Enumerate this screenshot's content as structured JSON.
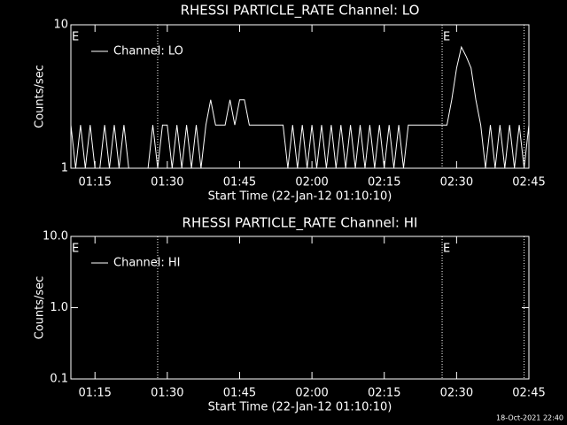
{
  "chart_data": [
    {
      "type": "line",
      "title": "RHESSI PARTICLE_RATE Channel: LO",
      "ylabel": "Counts/sec",
      "xlabel": "Start Time (22-Jan-12 01:10:10)",
      "log_y": true,
      "xlim": [
        "01:10",
        "02:45"
      ],
      "ylim": [
        1,
        10
      ],
      "yticks": [
        1,
        10
      ],
      "xticks": [
        "01:15",
        "01:30",
        "01:45",
        "02:00",
        "02:15",
        "02:30",
        "02:45"
      ],
      "vlines": [
        "01:28",
        "02:27",
        "02:44"
      ],
      "events": [
        {
          "x": "01:10",
          "label": "E"
        },
        {
          "x": "02:27",
          "label": "E"
        }
      ],
      "x": [
        "01:10",
        "01:11",
        "01:12",
        "01:13",
        "01:14",
        "01:15",
        "01:16",
        "01:17",
        "01:18",
        "01:19",
        "01:20",
        "01:21",
        "01:22",
        "01:23",
        "01:24",
        "01:25",
        "01:26",
        "01:27",
        "01:28",
        "01:29",
        "01:30",
        "01:31",
        "01:32",
        "01:33",
        "01:34",
        "01:35",
        "01:36",
        "01:37",
        "01:38",
        "01:39",
        "01:40",
        "01:41",
        "01:42",
        "01:43",
        "01:44",
        "01:45",
        "01:46",
        "01:47",
        "01:48",
        "01:49",
        "01:50",
        "01:51",
        "01:52",
        "01:53",
        "01:54",
        "01:55",
        "01:56",
        "01:57",
        "01:58",
        "01:59",
        "02:00",
        "02:01",
        "02:02",
        "02:03",
        "02:04",
        "02:05",
        "02:06",
        "02:07",
        "02:08",
        "02:09",
        "02:10",
        "02:11",
        "02:12",
        "02:13",
        "02:14",
        "02:15",
        "02:16",
        "02:17",
        "02:18",
        "02:19",
        "02:20",
        "02:21",
        "02:22",
        "02:23",
        "02:24",
        "02:25",
        "02:26",
        "02:27",
        "02:28",
        "02:29",
        "02:30",
        "02:31",
        "02:32",
        "02:33",
        "02:34",
        "02:35",
        "02:36",
        "02:37",
        "02:38",
        "02:39",
        "02:40",
        "02:41",
        "02:42",
        "02:43",
        "02:44",
        "02:45"
      ],
      "series": [
        {
          "name": "Channel: LO",
          "color": "#ffffff",
          "values": [
            2,
            1,
            2,
            1,
            2,
            1,
            1,
            2,
            1,
            2,
            1,
            2,
            1,
            1,
            1,
            1,
            1,
            2,
            1,
            2,
            2,
            1,
            2,
            1,
            2,
            1,
            2,
            1,
            2,
            3,
            2,
            2,
            2,
            3,
            2,
            3,
            3,
            2,
            2,
            2,
            2,
            2,
            2,
            2,
            2,
            1,
            2,
            1,
            2,
            1,
            2,
            1,
            2,
            1,
            2,
            1,
            2,
            1,
            2,
            1,
            2,
            1,
            2,
            1,
            2,
            1,
            2,
            1,
            2,
            1,
            2,
            2,
            2,
            2,
            2,
            2,
            2,
            2,
            2,
            3,
            5,
            7,
            6,
            5,
            3,
            2,
            1,
            2,
            1,
            2,
            1,
            2,
            1,
            2,
            1,
            2
          ]
        }
      ]
    },
    {
      "type": "line",
      "title": "RHESSI PARTICLE_RATE Channel: HI",
      "ylabel": "Counts/sec",
      "xlabel": "Start Time (22-Jan-12 01:10:10)",
      "log_y": true,
      "xlim": [
        "01:10",
        "02:45"
      ],
      "ylim": [
        0.1,
        10
      ],
      "yticks": [
        0.1,
        {
          "value": 1,
          "label": "1.0"
        },
        {
          "value": 10,
          "label": "10.0"
        }
      ],
      "xticks": [
        "01:15",
        "01:30",
        "01:45",
        "02:00",
        "02:15",
        "02:30",
        "02:45"
      ],
      "vlines": [
        "01:28",
        "02:27",
        "02:44"
      ],
      "events": [
        {
          "x": "01:10",
          "label": "E"
        },
        {
          "x": "02:27",
          "label": "E"
        }
      ],
      "x": [],
      "series": [
        {
          "name": "Channel: HI",
          "color": "#ffffff",
          "values": []
        }
      ]
    }
  ],
  "footer": "18-Oct-2021 22:40"
}
